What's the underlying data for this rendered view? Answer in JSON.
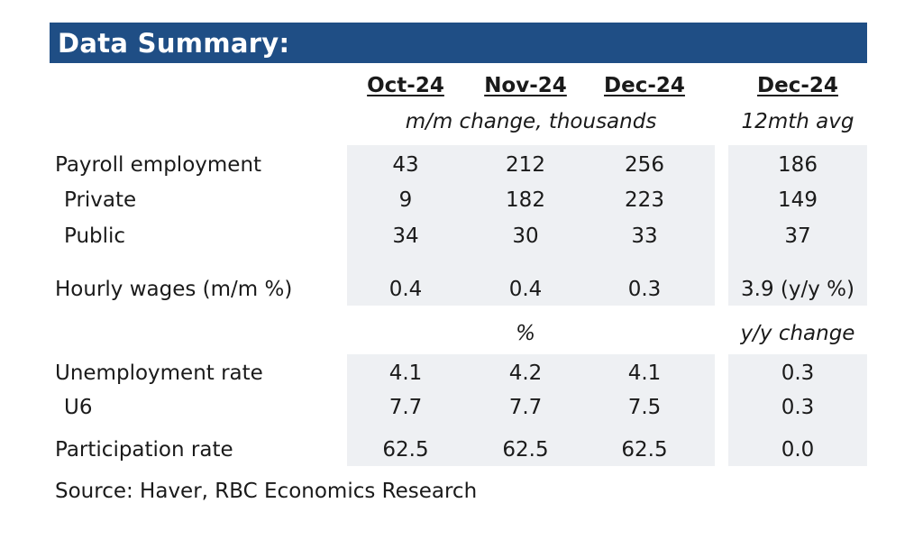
{
  "title": "Data Summary:",
  "headers": {
    "col1": "Oct-24",
    "col2": "Nov-24",
    "col3": "Dec-24",
    "col4": "Dec-24"
  },
  "subheaders": {
    "mm_change": "m/m change, thousands",
    "avg": "12mth avg",
    "pct": "%",
    "yy_change": "y/y change"
  },
  "rows": {
    "payroll": {
      "label": "Payroll employment",
      "v1": "43",
      "v2": "212",
      "v3": "256",
      "v4": "186"
    },
    "private": {
      "label": "Private",
      "v1": "9",
      "v2": "182",
      "v3": "223",
      "v4": "149"
    },
    "public": {
      "label": "Public",
      "v1": "34",
      "v2": "30",
      "v3": "33",
      "v4": "37"
    },
    "wages": {
      "label": "Hourly wages (m/m %)",
      "v1": "0.4",
      "v2": "0.4",
      "v3": "0.3",
      "v4": "3.9 (y/y %)"
    },
    "unemployment": {
      "label": "Unemployment rate",
      "v1": "4.1",
      "v2": "4.2",
      "v3": "4.1",
      "v4": "0.3"
    },
    "u6": {
      "label": "U6",
      "v1": "7.7",
      "v2": "7.7",
      "v3": "7.5",
      "v4": "0.3"
    },
    "participation": {
      "label": "Participation rate",
      "v1": "62.5",
      "v2": "62.5",
      "v3": "62.5",
      "v4": "0.0"
    }
  },
  "source": "Source:  Haver, RBC Economics Research",
  "colors": {
    "banner": "#1f4e85",
    "shade": "#eef0f3"
  }
}
